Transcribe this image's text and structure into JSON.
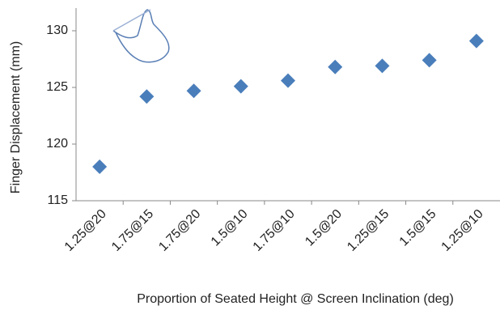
{
  "chart_data": {
    "type": "scatter",
    "x_label": "Proportion of Seated Height @ Screen Inclination (deg)",
    "y_label": "Finger Displacement (mm)",
    "categories": [
      "1.25@20",
      "1.75@15",
      "1.75@20",
      "1.5@10",
      "1.75@10",
      "1.5@20",
      "1.25@15",
      "1.5@15",
      "1.25@10"
    ],
    "values": [
      118.0,
      124.2,
      124.7,
      125.1,
      125.6,
      126.8,
      126.9,
      127.4,
      129.1
    ],
    "color": "#4a7ebb",
    "ylim": [
      115,
      132
    ],
    "yticks": [
      115,
      120,
      125,
      130
    ],
    "grid": false
  }
}
